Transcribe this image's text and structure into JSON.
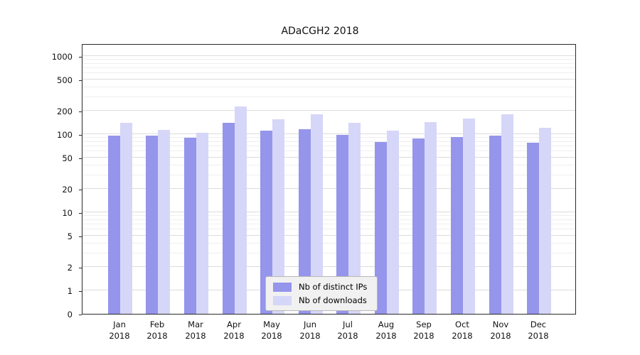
{
  "colors": {
    "ips": "#9595ec",
    "downloads": "#d6d6f8"
  },
  "chart_data": {
    "type": "bar",
    "title": "ADaCGH2 2018",
    "categories": [
      "Jan 2018",
      "Feb 2018",
      "Mar 2018",
      "Apr 2018",
      "May 2018",
      "Jun 2018",
      "Jul 2018",
      "Aug 2018",
      "Sep 2018",
      "Oct 2018",
      "Nov 2018",
      "Dec 2018"
    ],
    "series": [
      {
        "name": "Nb of distinct IPs",
        "values": [
          95,
          95,
          90,
          140,
          110,
          115,
          97,
          80,
          88,
          92,
          95,
          78
        ]
      },
      {
        "name": "Nb of downloads",
        "values": [
          140,
          113,
          105,
          225,
          155,
          180,
          140,
          112,
          143,
          157,
          178,
          122
        ]
      }
    ],
    "yscale": "log",
    "yticks": [
      0,
      1,
      2,
      5,
      10,
      20,
      50,
      100,
      200,
      500,
      1000
    ],
    "ylim": [
      0,
      1300
    ],
    "grid": true,
    "legend_position": "lower center",
    "xlabel": "",
    "ylabel": ""
  }
}
